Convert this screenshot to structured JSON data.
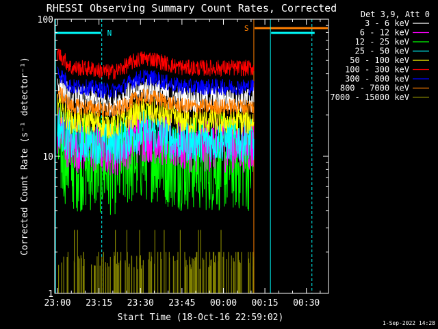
{
  "chart_data": {
    "type": "line",
    "title": "RHESSI Observing Summary Count Rates, Corrected",
    "xlabel": "Start Time (18-Oct-16 22:59:02)",
    "ylabel": "Corrected Count Rate (s⁻¹ detector⁻¹)",
    "yscale": "log",
    "ylim": [
      1,
      100
    ],
    "xlim": [
      "22:59",
      "00:38"
    ],
    "x_ticks": [
      "23:00",
      "23:15",
      "23:30",
      "23:45",
      "00:00",
      "00:15",
      "00:30"
    ],
    "y_ticks": [
      1,
      10,
      100
    ],
    "y_tick_labels": [
      "1",
      "10",
      "100"
    ],
    "grid": false,
    "legend_header": "Det 3,9, Att 0",
    "legend_position": "top-right",
    "footer_date": "1-Sep-2022 14:28",
    "data_end": "00:11",
    "series": [
      {
        "name": "3 - 6 keV",
        "color": "#ffffff",
        "level": 26,
        "noise": 0.05
      },
      {
        "name": "6 - 12 keV",
        "color": "#ff00ff",
        "level": 12,
        "noise": 0.1
      },
      {
        "name": "12 - 25 keV",
        "color": "#00ff00",
        "level": 9,
        "noise": 0.18
      },
      {
        "name": "25 - 50 keV",
        "color": "#00ffff",
        "level": 13,
        "noise": 0.08
      },
      {
        "name": "50 - 100 keV",
        "color": "#ffff00",
        "level": 18,
        "noise": 0.05
      },
      {
        "name": "100 - 300 keV",
        "color": "#ff0000",
        "level": 44,
        "noise": 0.03
      },
      {
        "name": "300 - 800 keV",
        "color": "#0000ff",
        "level": 32,
        "noise": 0.03
      },
      {
        "name": "800 - 7000 keV",
        "color": "#ff7f00",
        "level": 23,
        "noise": 0.03
      },
      {
        "name": "7000 - 15000 keV",
        "color": "#808000",
        "level": 1.5,
        "noise": 0.0
      }
    ],
    "annotations": [
      {
        "label": "N",
        "color": "#00ffff",
        "kind": "night",
        "start": "22:59",
        "end": "23:16"
      },
      {
        "label": "S",
        "color": "#ff7f00",
        "kind": "saa",
        "start": "00:11",
        "end": "00:38"
      }
    ],
    "vlines": [
      {
        "time": "23:16",
        "color": "#00ffff",
        "style": "dashed"
      },
      {
        "time": "00:11",
        "color": "#ff7f00",
        "style": "solid"
      },
      {
        "time": "00:17",
        "color": "#00ffff",
        "style": "solid"
      },
      {
        "time": "00:32",
        "color": "#00ffff",
        "style": "dashed"
      }
    ]
  }
}
